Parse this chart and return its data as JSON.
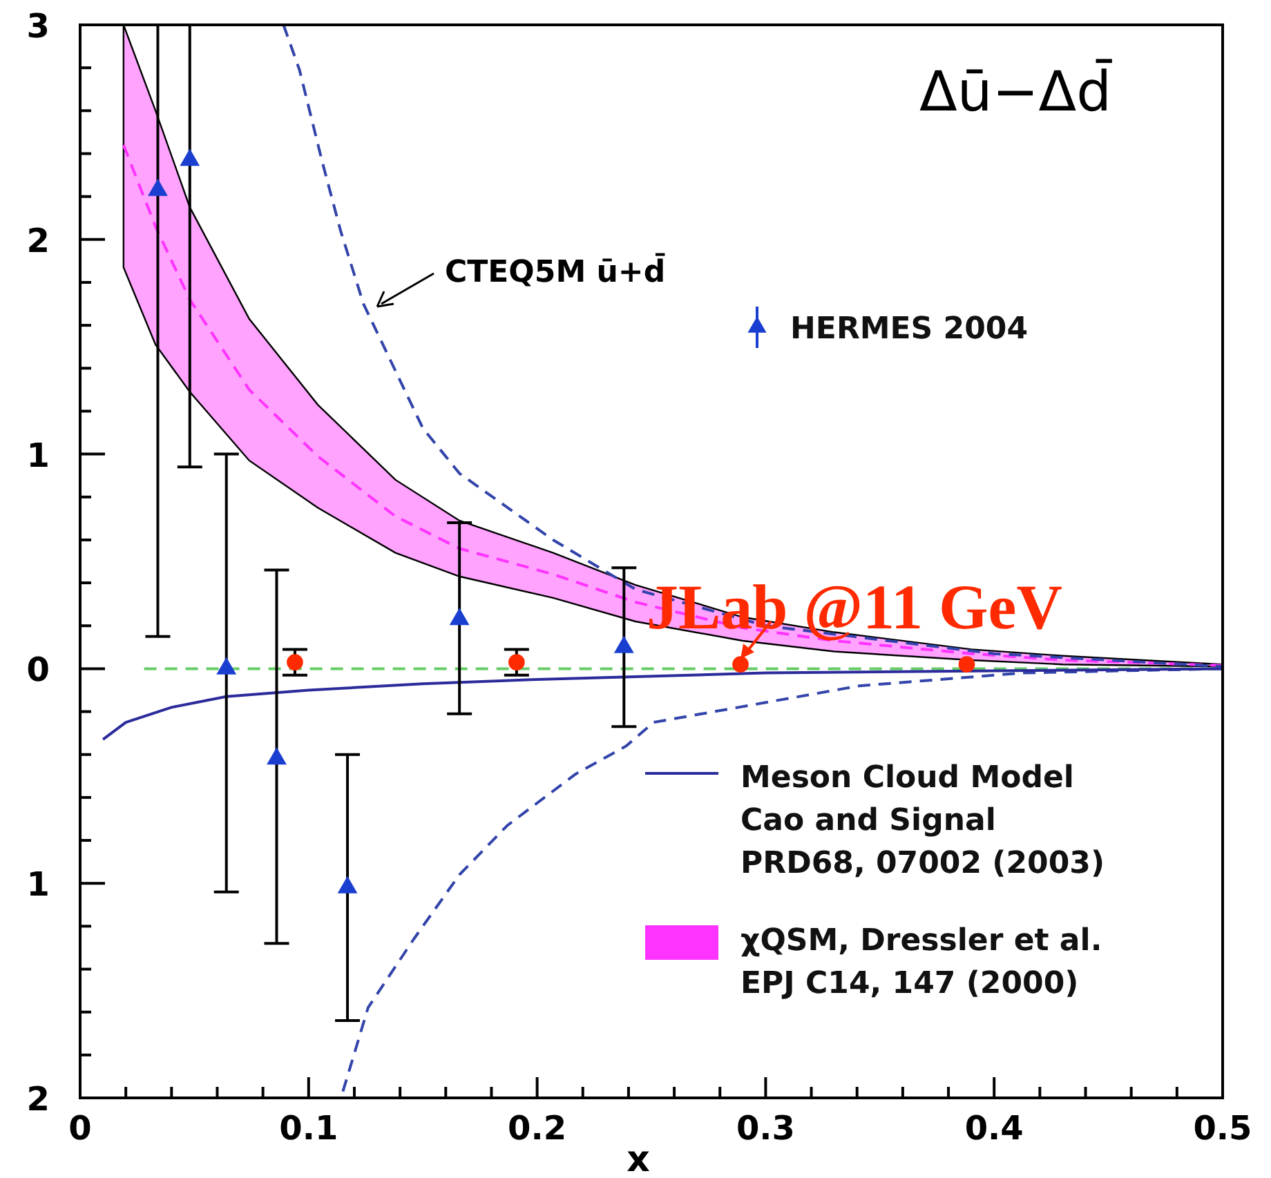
{
  "chart_data": {
    "type": "scatter",
    "title": "Δū−Δd̄",
    "xlabel": "x",
    "xlim": [
      0,
      0.5
    ],
    "ylim": [
      -2,
      3
    ],
    "grid": false,
    "legend": "right",
    "xticks": [
      0,
      {
        "value": 0.02,
        "label": null
      },
      {
        "value": 0.04,
        "label": null
      },
      {
        "value": 0.06,
        "label": null
      },
      {
        "value": 0.08,
        "label": null
      },
      0.1,
      {
        "value": 0.12,
        "label": null
      },
      {
        "value": 0.14,
        "label": null
      },
      {
        "value": 0.16,
        "label": null
      },
      {
        "value": 0.18,
        "label": null
      },
      0.2,
      {
        "value": 0.22,
        "label": null
      },
      {
        "value": 0.24,
        "label": null
      },
      {
        "value": 0.26,
        "label": null
      },
      {
        "value": 0.28,
        "label": null
      },
      0.3,
      {
        "value": 0.32,
        "label": null
      },
      {
        "value": 0.34,
        "label": null
      },
      {
        "value": 0.36,
        "label": null
      },
      {
        "value": 0.38,
        "label": null
      },
      0.4,
      {
        "value": 0.42,
        "label": null
      },
      {
        "value": 0.44,
        "label": null
      },
      {
        "value": 0.46,
        "label": null
      },
      {
        "value": 0.48,
        "label": null
      },
      0.5
    ],
    "yticks": [
      {
        "value": -2,
        "label": "2"
      },
      {
        "value": -1.8,
        "label": null
      },
      {
        "value": -1.6,
        "label": null
      },
      {
        "value": -1.4,
        "label": null
      },
      {
        "value": -1.2,
        "label": null
      },
      {
        "value": -1,
        "label": "1"
      },
      {
        "value": -0.8,
        "label": null
      },
      {
        "value": -0.6,
        "label": null
      },
      {
        "value": -0.4,
        "label": null
      },
      {
        "value": -0.2,
        "label": null
      },
      0,
      {
        "value": 0.2,
        "label": null
      },
      {
        "value": 0.4,
        "label": null
      },
      {
        "value": 0.6,
        "label": null
      },
      {
        "value": 0.8,
        "label": null
      },
      1,
      {
        "value": 1.2,
        "label": null
      },
      {
        "value": 1.4,
        "label": null
      },
      {
        "value": 1.6,
        "label": null
      },
      {
        "value": 1.8,
        "label": null
      },
      2,
      {
        "value": 2.2,
        "label": null
      },
      {
        "value": 2.4,
        "label": null
      },
      {
        "value": 2.6,
        "label": null
      },
      {
        "value": 2.8,
        "label": null
      },
      3
    ],
    "annotations": [
      "CTEQ5M ū+d̄",
      {
        "text": "JLab @11 GeV",
        "x": 0.289,
        "y": 0.02
      }
    ],
    "series": [
      {
        "type": "line",
        "name": "χQSM,  Dressler et al.\nEPJ C14, 147 (2000)",
        "color": "#ff33ff",
        "line_style": "dashed",
        "x": [
          0.019,
          0.033,
          0.048,
          0.074,
          0.104,
          0.138,
          0.166,
          0.207,
          0.243,
          0.29,
          0.33,
          0.39,
          0.43,
          0.5
        ],
        "values": [
          2.44,
          2.06,
          1.72,
          1.3,
          0.99,
          0.71,
          0.56,
          0.44,
          0.31,
          0.19,
          0.13,
          0.07,
          0.04,
          0.015
        ],
        "lower": [
          1.87,
          1.51,
          1.29,
          0.97,
          0.75,
          0.54,
          0.43,
          0.33,
          0.22,
          0.13,
          0.08,
          0.04,
          0.02,
          0.01
        ],
        "upper": [
          3,
          2.6,
          2.15,
          1.63,
          1.23,
          0.88,
          0.69,
          0.54,
          0.39,
          0.24,
          0.17,
          0.09,
          0.06,
          0.02
        ]
      },
      {
        "type": "line",
        "color": "#3344aa",
        "line_style": "dashed",
        "x": [
          0.089,
          0.096,
          0.106,
          0.114,
          0.124,
          0.15,
          0.166,
          0.207,
          0.243,
          0.3,
          0.4,
          0.5
        ],
        "values": [
          3,
          2.79,
          2.36,
          2.04,
          1.7,
          1.12,
          0.91,
          0.6,
          0.37,
          0.2,
          0.07,
          0.01
        ]
      },
      {
        "type": "line",
        "color": "#3344aa",
        "line_style": "dashed",
        "x": [
          0.115,
          0.126,
          0.146,
          0.166,
          0.187,
          0.217,
          0.239,
          0.251,
          0.341,
          0.412,
          0.5
        ],
        "values": [
          -1.97,
          -1.58,
          -1.26,
          -0.96,
          -0.73,
          -0.49,
          -0.36,
          -0.25,
          -0.08,
          -0.02,
          0
        ]
      },
      {
        "type": "line",
        "color": "#66cc66",
        "line_style": "dashed",
        "x": [
          0.028,
          0.5
        ],
        "values": [
          0,
          0
        ]
      },
      {
        "type": "line",
        "name": "Meson Cloud Model\nCao and Signal\nPRD68, 07002 (2003)",
        "color": "#2b2b9b",
        "line_style": "solid",
        "x": [
          0.01,
          0.02,
          0.04,
          0.064,
          0.1,
          0.15,
          0.2,
          0.3,
          0.4,
          0.5
        ],
        "values": [
          -0.33,
          -0.25,
          -0.18,
          -0.13,
          -0.1,
          -0.07,
          -0.05,
          -0.02,
          -0.01,
          0
        ]
      },
      {
        "name": "HERMES 2004",
        "color": "#1a3fd0",
        "marker": "triangle",
        "x": [
          0.034,
          0.048,
          0.064,
          0.086,
          0.117,
          0.166,
          0.238
        ],
        "values": [
          2.23,
          2.37,
          0,
          -0.42,
          -1.02,
          0.23,
          0.1
        ],
        "errors": [
          [
            0.15,
            3
          ],
          [
            0.94,
            3
          ],
          [
            -1.04,
            1
          ],
          [
            -1.28,
            0.46
          ],
          [
            -1.64,
            -0.4
          ],
          [
            -0.21,
            0.68
          ],
          [
            -0.27,
            0.47
          ]
        ]
      },
      {
        "color": "#ff2a00",
        "marker": "circle",
        "x": [
          0.094,
          0.191,
          0.289,
          0.388
        ],
        "values": [
          0.03,
          0.03,
          0.02,
          0.02
        ],
        "errors": [
          [
            -0.03,
            0.09
          ],
          [
            -0.03,
            0.09
          ],
          null,
          null
        ]
      }
    ]
  }
}
